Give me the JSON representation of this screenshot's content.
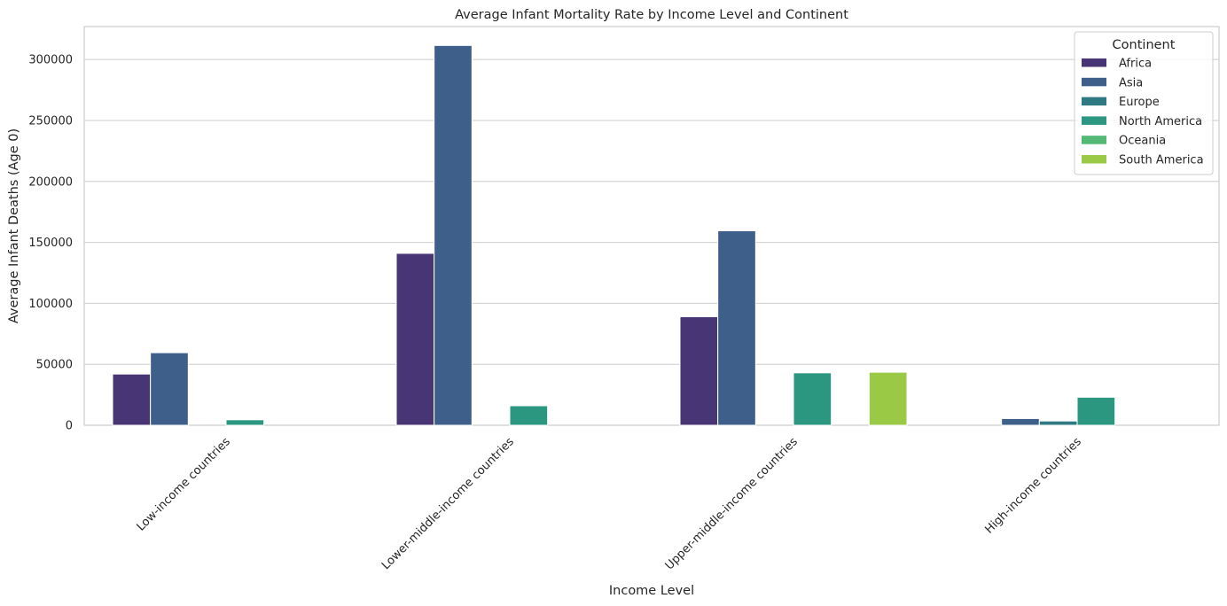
{
  "chart_data": {
    "type": "bar",
    "title": "Average Infant Mortality Rate by Income Level and Continent",
    "xlabel": "Income Level",
    "ylabel": "Average Infant Deaths (Age 0)",
    "categories": [
      "Low-income countries",
      "Lower-middle-income countries",
      "Upper-middle-income countries",
      "High-income countries"
    ],
    "ylim": [
      0,
      327000
    ],
    "yticks": [
      0,
      50000,
      100000,
      150000,
      200000,
      250000,
      300000
    ],
    "ytick_labels": [
      "0",
      "50000",
      "100000",
      "150000",
      "200000",
      "250000",
      "300000"
    ],
    "grid": true,
    "legend": {
      "title": "Continent",
      "placement": "top-right"
    },
    "series": [
      {
        "name": "Africa",
        "color": "#483575",
        "values": [
          42000,
          141000,
          89000,
          null
        ]
      },
      {
        "name": "Asia",
        "color": "#3e5f8a",
        "values": [
          59500,
          311500,
          159500,
          5500
        ]
      },
      {
        "name": "Europe",
        "color": "#2f7a82",
        "values": [
          null,
          null,
          null,
          3500
        ]
      },
      {
        "name": "North America",
        "color": "#2b9780",
        "values": [
          4500,
          16000,
          43000,
          23000
        ]
      },
      {
        "name": "Oceania",
        "color": "#52b874",
        "values": [
          null,
          null,
          null,
          null
        ]
      },
      {
        "name": "South America",
        "color": "#9ac946",
        "values": [
          null,
          null,
          43500,
          null
        ]
      }
    ]
  }
}
